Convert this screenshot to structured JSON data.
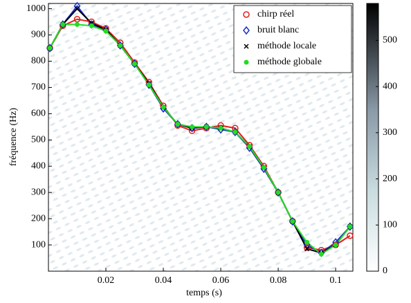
{
  "chart_data": {
    "type": "line",
    "xlabel": "temps (s)",
    "ylabel": "fréquence (Hz)",
    "x": [
      0.0005,
      0.005,
      0.01,
      0.015,
      0.02,
      0.025,
      0.03,
      0.035,
      0.04,
      0.045,
      0.05,
      0.055,
      0.06,
      0.065,
      0.07,
      0.075,
      0.08,
      0.085,
      0.09,
      0.095,
      0.1,
      0.105
    ],
    "series": [
      {
        "name": "chirp réel",
        "color": "#e0201c",
        "marker": "circle",
        "values": [
          850,
          935,
          960,
          950,
          925,
          870,
          795,
          720,
          630,
          555,
          535,
          545,
          555,
          545,
          480,
          400,
          300,
          190,
          90,
          80,
          100,
          135
        ]
      },
      {
        "name": "bruit blanc",
        "color": "#1a2fc8",
        "marker": "diamond",
        "values": [
          850,
          940,
          1010,
          940,
          920,
          860,
          790,
          710,
          620,
          560,
          545,
          550,
          540,
          530,
          470,
          390,
          300,
          190,
          100,
          70,
          110,
          170
        ]
      },
      {
        "name": "méthode locale",
        "color": "#000000",
        "marker": "cross",
        "values": [
          850,
          940,
          1000,
          945,
          920,
          860,
          790,
          715,
          625,
          560,
          545,
          550,
          545,
          530,
          475,
          395,
          300,
          190,
          85,
          70,
          100,
          170
        ]
      },
      {
        "name": "méthode globale",
        "color": "#22dd22",
        "marker": "dot",
        "values": [
          850,
          940,
          940,
          935,
          915,
          860,
          790,
          710,
          625,
          560,
          550,
          550,
          545,
          530,
          475,
          395,
          300,
          190,
          110,
          65,
          100,
          170
        ]
      }
    ],
    "xlim": [
      0,
      0.106
    ],
    "ylim": [
      0,
      1020
    ],
    "xticks": [
      0.02,
      0.04,
      0.06,
      0.08,
      0.1
    ],
    "yticks": [
      100,
      200,
      300,
      400,
      500,
      600,
      700,
      800,
      900,
      1000
    ],
    "legend": "upper right",
    "colorbar": {
      "lim": [
        0,
        580
      ],
      "ticks": [
        0,
        100,
        200,
        300,
        400,
        500
      ]
    }
  }
}
